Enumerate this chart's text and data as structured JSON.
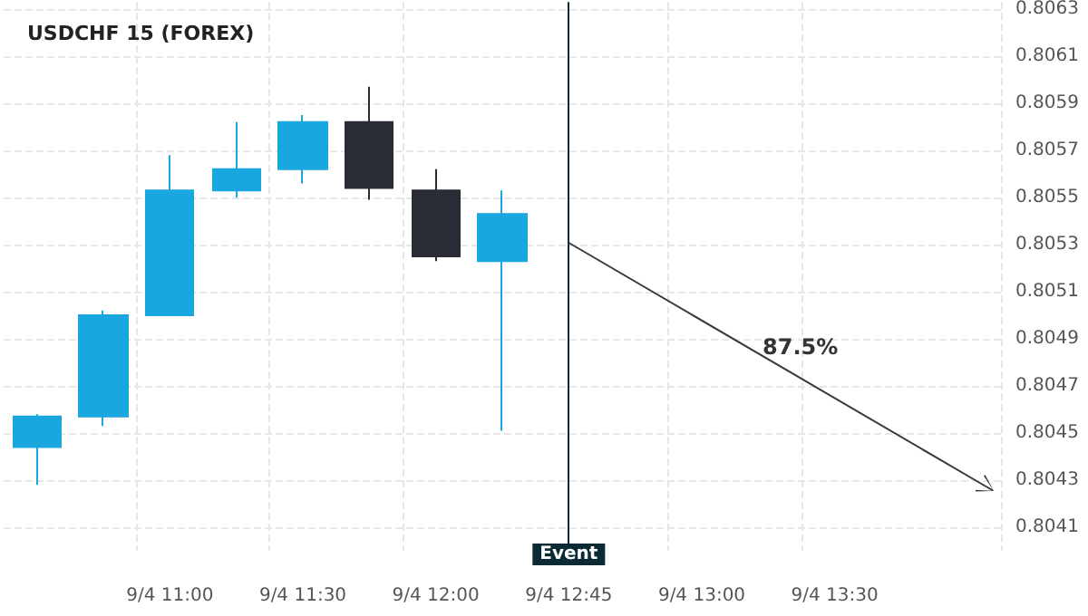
{
  "chart_data": {
    "type": "candlestick",
    "title": "USDCHF 15 (FOREX)",
    "categories": [
      null,
      null,
      "9/4 11:00",
      null,
      "9/4 11:30",
      null,
      "9/4 12:00",
      null,
      "9/4 12:45",
      null,
      "9/4 13:00",
      null,
      "9/4 13:30",
      null,
      null
    ],
    "series": [
      {
        "colors": [
          "#1aa7e0",
          "#1aa7e0",
          "#1aa7e0",
          "#1aa7e0",
          "#1aa7e0",
          "#2a2c35",
          "#2a2c35",
          "#1aa7e0",
          null,
          null,
          null,
          null,
          null,
          null,
          null
        ],
        "ohlc": [
          [
            0.80444,
            0.80458,
            0.80428,
            0.80457
          ],
          [
            0.80457,
            0.80502,
            0.80453,
            0.805
          ],
          [
            0.805,
            0.80568,
            0.805,
            0.80553
          ],
          [
            0.80553,
            0.80582,
            0.8055,
            0.80562
          ],
          [
            0.80562,
            0.80585,
            0.80556,
            0.80582
          ],
          [
            0.80582,
            0.80597,
            0.80549,
            0.80554
          ],
          [
            0.80553,
            0.80562,
            0.80523,
            0.80525
          ],
          [
            0.80523,
            0.80553,
            0.80451,
            0.80543
          ],
          null,
          null,
          null,
          null,
          null,
          null,
          null
        ]
      }
    ],
    "ylim": [
      0.804,
      0.80633
    ],
    "yticks": [
      0.8041,
      0.8043,
      0.8045,
      0.8047,
      0.8049,
      0.8051,
      0.8053,
      0.8055,
      0.8057,
      0.8059,
      0.8061,
      0.8063
    ],
    "grid": true,
    "ref_lines": [
      {
        "axis": "x",
        "value": "9/4 12:45",
        "label": "Event",
        "color": "#0b2a33"
      }
    ],
    "annotations": [
      "87.5%"
    ]
  }
}
